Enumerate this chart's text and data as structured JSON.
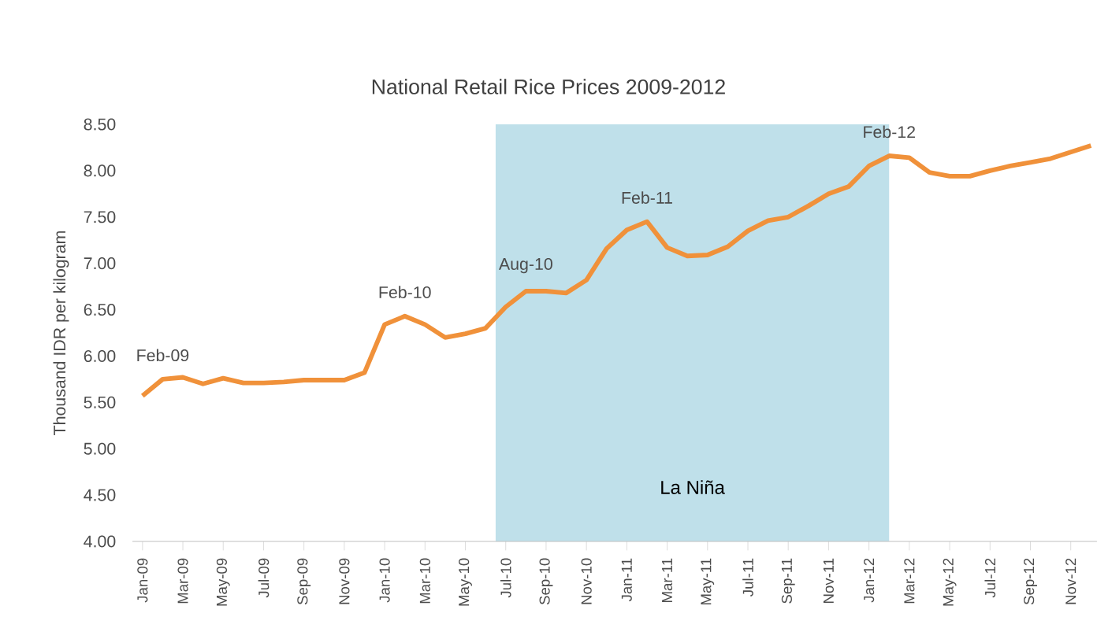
{
  "chart_data": {
    "type": "line",
    "title": "National Retail Rice Prices 2009-2012",
    "ylabel": "Thousand IDR per kilogram",
    "x": [
      "2009-01",
      "2009-02",
      "2009-03",
      "2009-04",
      "2009-05",
      "2009-06",
      "2009-07",
      "2009-08",
      "2009-09",
      "2009-10",
      "2009-11",
      "2009-12",
      "2010-01",
      "2010-02",
      "2010-03",
      "2010-04",
      "2010-05",
      "2010-06",
      "2010-07",
      "2010-08",
      "2010-09",
      "2010-10",
      "2010-11",
      "2010-12",
      "2011-01",
      "2011-02",
      "2011-03",
      "2011-04",
      "2011-05",
      "2011-06",
      "2011-07",
      "2011-08",
      "2011-09",
      "2011-10",
      "2011-11",
      "2011-12",
      "2012-01",
      "2012-02",
      "2012-03",
      "2012-04",
      "2012-05",
      "2012-06",
      "2012-07",
      "2012-08",
      "2012-09",
      "2012-10",
      "2012-11",
      "2012-12"
    ],
    "series": [
      {
        "color": "#f0913a",
        "values": [
          5.57,
          5.75,
          5.77,
          5.7,
          5.76,
          5.71,
          5.71,
          5.72,
          5.74,
          5.74,
          5.74,
          5.82,
          6.34,
          6.43,
          6.34,
          6.2,
          6.24,
          6.3,
          6.53,
          6.7,
          6.7,
          6.68,
          6.82,
          7.16,
          7.36,
          7.45,
          7.17,
          7.08,
          7.09,
          7.18,
          7.35,
          7.46,
          7.5,
          7.62,
          7.75,
          7.83,
          8.05,
          8.16,
          8.14,
          7.98,
          7.94,
          7.94,
          8.0,
          8.05,
          8.09,
          8.13,
          8.2,
          8.27
        ]
      }
    ],
    "xlim": [
      "2008-12-16",
      "2012-12-10"
    ],
    "xticks": [
      {
        "value": "2009-01",
        "label": "Jan-09"
      },
      {
        "value": "2009-03",
        "label": "Mar-09"
      },
      {
        "value": "2009-05",
        "label": "May-09"
      },
      {
        "value": "2009-07",
        "label": "Jul-09"
      },
      {
        "value": "2009-09",
        "label": "Sep-09"
      },
      {
        "value": "2009-11",
        "label": "Nov-09"
      },
      {
        "value": "2010-01",
        "label": "Jan-10"
      },
      {
        "value": "2010-03",
        "label": "Mar-10"
      },
      {
        "value": "2010-05",
        "label": "May-10"
      },
      {
        "value": "2010-07",
        "label": "Jul-10"
      },
      {
        "value": "2010-09",
        "label": "Sep-10"
      },
      {
        "value": "2010-11",
        "label": "Nov-10"
      },
      {
        "value": "2011-01",
        "label": "Jan-11"
      },
      {
        "value": "2011-03",
        "label": "Mar-11"
      },
      {
        "value": "2011-05",
        "label": "May-11"
      },
      {
        "value": "2011-07",
        "label": "Jul-11"
      },
      {
        "value": "2011-09",
        "label": "Sep-11"
      },
      {
        "value": "2011-11",
        "label": "Nov-11"
      },
      {
        "value": "2012-01",
        "label": "Jan-12"
      },
      {
        "value": "2012-03",
        "label": "Mar-12"
      },
      {
        "value": "2012-05",
        "label": "May-12"
      },
      {
        "value": "2012-07",
        "label": "Jul-12"
      },
      {
        "value": "2012-09",
        "label": "Sep-12"
      },
      {
        "value": "2012-11",
        "label": "Nov-12"
      }
    ],
    "ylim": [
      4,
      8.5
    ],
    "yticks": [
      {
        "value": 4,
        "label": "4.00"
      },
      {
        "value": 4.5,
        "label": "4.50"
      },
      {
        "value": 5,
        "label": "5.00"
      },
      {
        "value": 5.5,
        "label": "5.50"
      },
      {
        "value": 6,
        "label": "6.00"
      },
      {
        "value": 6.5,
        "label": "6.50"
      },
      {
        "value": 7,
        "label": "7.00"
      },
      {
        "value": 7.5,
        "label": "7.50"
      },
      {
        "value": 8,
        "label": "8.00"
      },
      {
        "value": 8.5,
        "label": "8.50"
      }
    ],
    "annotations": [
      {
        "text": "Feb-09",
        "x": "2009-02",
        "y": 5.75
      },
      {
        "text": "Feb-10",
        "x": "2010-02",
        "y": 6.43
      },
      {
        "text": "Aug-10",
        "x": "2010-08",
        "y": 6.7
      },
      {
        "text": "Feb-11",
        "x": "2011-02",
        "y": 7.45
      },
      {
        "text": "Feb-12",
        "x": "2012-02",
        "y": 8.16
      }
    ],
    "bands": [
      {
        "axis": "x",
        "from": "2010-06-16",
        "to": "2012-02-01",
        "label": "La Niña",
        "color": "#bfe0ea"
      }
    ],
    "grid": false,
    "marker": "none",
    "line_style": "solid"
  }
}
